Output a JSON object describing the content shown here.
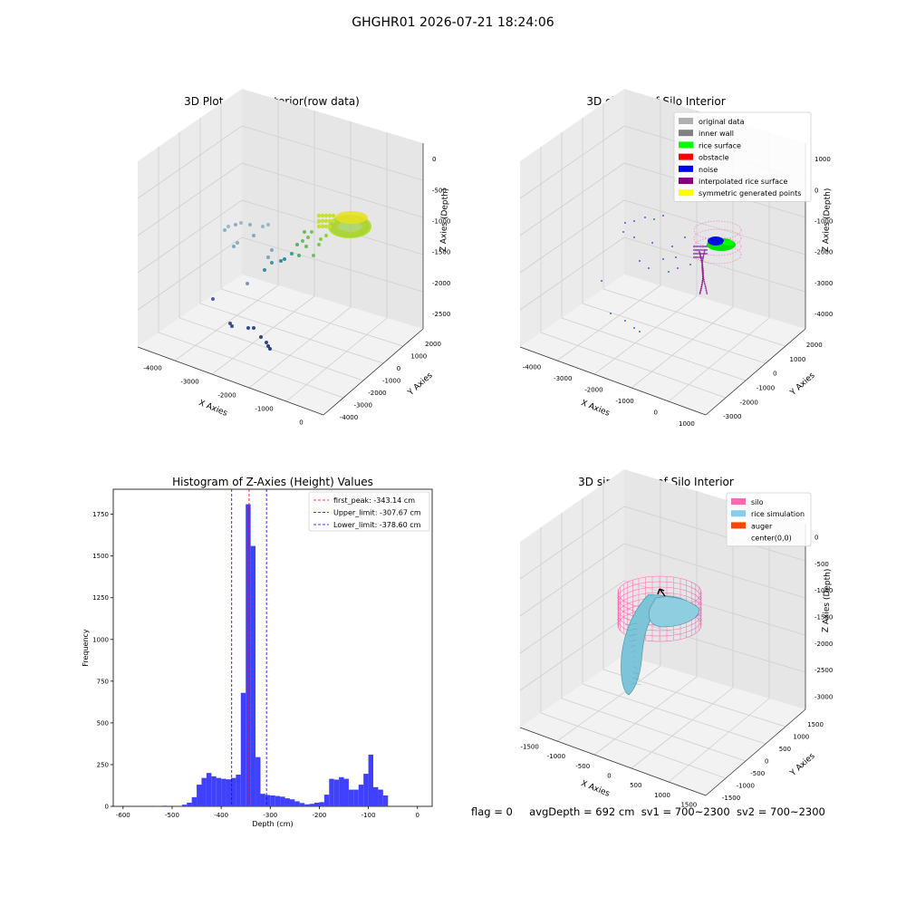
{
  "figure_title": "GHGHR01 2026-07-21 18:24:06",
  "status": {
    "flag": "flag = 0",
    "avg_depth": "avgDepth = 692 cm",
    "sv1": "sv1 = 700~2300",
    "sv2": "sv2 = 700~2300"
  },
  "chart_data": [
    {
      "type": "scatter",
      "title": "3D Plot of Silo Interior(row data)",
      "xlabel": "X Axies",
      "ylabel": "Y Axies",
      "zlabel": "Z Axies (Depth)",
      "xticks": [
        -4000,
        -3000,
        -2000,
        -1000,
        0
      ],
      "yticks": [
        2000,
        1000,
        0,
        -1000,
        -2000,
        -3000,
        -4000
      ],
      "zticks": [
        0,
        -500,
        -1000,
        -1500,
        -2000,
        -2500
      ],
      "colormap": "viridis (colored by depth)"
    },
    {
      "type": "scatter",
      "title": "3D classify of Silo Interior",
      "xlabel": "X Axies",
      "ylabel": "Y Axies",
      "zlabel": "Z Axies (Depth)",
      "xticks": [
        -4000,
        -3000,
        -2000,
        -1000,
        0,
        1000
      ],
      "yticks": [
        2000,
        1000,
        0,
        -1000,
        -2000,
        -3000
      ],
      "zticks": [
        1000,
        0,
        -1000,
        -2000,
        -3000,
        -4000
      ],
      "legend": [
        {
          "label": "original data",
          "color": "#b0b0b0"
        },
        {
          "label": "inner wall",
          "color": "#808080"
        },
        {
          "label": "rice surface",
          "color": "#00ff00"
        },
        {
          "label": "obstacle",
          "color": "#ff0000"
        },
        {
          "label": "noise",
          "color": "#0000ff"
        },
        {
          "label": "interpolated rice surface",
          "color": "#800080"
        },
        {
          "label": "symmetric generated points",
          "color": "#ffff00"
        }
      ],
      "legend_placement": "top-right"
    },
    {
      "type": "bar",
      "title": "Histogram of Z-Axies (Height) Values",
      "xlabel": "Depth (cm)",
      "ylabel": "Frequency",
      "xlim": [
        -620,
        30
      ],
      "ylim": [
        0,
        1900
      ],
      "xticks": [
        -600,
        -500,
        -400,
        -300,
        -200,
        -100,
        0
      ],
      "yticks": [
        0,
        250,
        500,
        750,
        1000,
        1250,
        1500,
        1750
      ],
      "bar_color": "#4040ff",
      "bin_width": 10,
      "bins": [
        [
          -530,
          3
        ],
        [
          -520,
          4
        ],
        [
          -480,
          10
        ],
        [
          -470,
          22
        ],
        [
          -460,
          55
        ],
        [
          -450,
          130
        ],
        [
          -440,
          170
        ],
        [
          -430,
          200
        ],
        [
          -420,
          180
        ],
        [
          -410,
          170
        ],
        [
          -400,
          165
        ],
        [
          -390,
          162
        ],
        [
          -380,
          170
        ],
        [
          -370,
          190
        ],
        [
          -360,
          680
        ],
        [
          -350,
          1810
        ],
        [
          -340,
          1560
        ],
        [
          -330,
          295
        ],
        [
          -320,
          75
        ],
        [
          -310,
          68
        ],
        [
          -300,
          65
        ],
        [
          -290,
          62
        ],
        [
          -280,
          58
        ],
        [
          -270,
          48
        ],
        [
          -260,
          42
        ],
        [
          -250,
          30
        ],
        [
          -240,
          20
        ],
        [
          -230,
          12
        ],
        [
          -220,
          15
        ],
        [
          -210,
          22
        ],
        [
          -200,
          25
        ],
        [
          -190,
          70
        ],
        [
          -180,
          165
        ],
        [
          -170,
          160
        ],
        [
          -160,
          175
        ],
        [
          -150,
          165
        ],
        [
          -140,
          100
        ],
        [
          -130,
          100
        ],
        [
          -120,
          130
        ],
        [
          -110,
          195
        ],
        [
          -100,
          310
        ],
        [
          -90,
          115
        ],
        [
          -80,
          100
        ],
        [
          -70,
          65
        ]
      ],
      "vlines": [
        {
          "label": "first_peak: -343.14 cm",
          "x": -343.14,
          "color": "#ff0000"
        },
        {
          "label": "Upper_limit: -307.67 cm",
          "x": -307.67,
          "color": "#0000ff"
        },
        {
          "label": "Lower_limit: -378.60 cm",
          "x": -378.6,
          "color": "#0000ff"
        }
      ],
      "legend_placement": "top-right"
    },
    {
      "type": "surface",
      "title": "3D simulation of Silo Interior",
      "xlabel": "X Axies",
      "ylabel": "Y Axies",
      "zlabel": "Z Axies (Depth)",
      "xticks": [
        -1500,
        -1000,
        -500,
        0,
        500,
        1000,
        1500
      ],
      "yticks": [
        1500,
        1000,
        500,
        0,
        -500,
        -1000,
        -1500
      ],
      "zticks": [
        0,
        -500,
        -1000,
        -1500,
        -2000,
        -2500,
        -3000
      ],
      "legend": [
        {
          "label": "silo",
          "color": "#ff69b4"
        },
        {
          "label": "rice simulation",
          "color": "#87ceeb"
        },
        {
          "label": "auger",
          "color": "#ff4500"
        },
        {
          "label": "center(0,0)",
          "color": "#000000"
        }
      ],
      "legend_placement": "top-right"
    }
  ]
}
